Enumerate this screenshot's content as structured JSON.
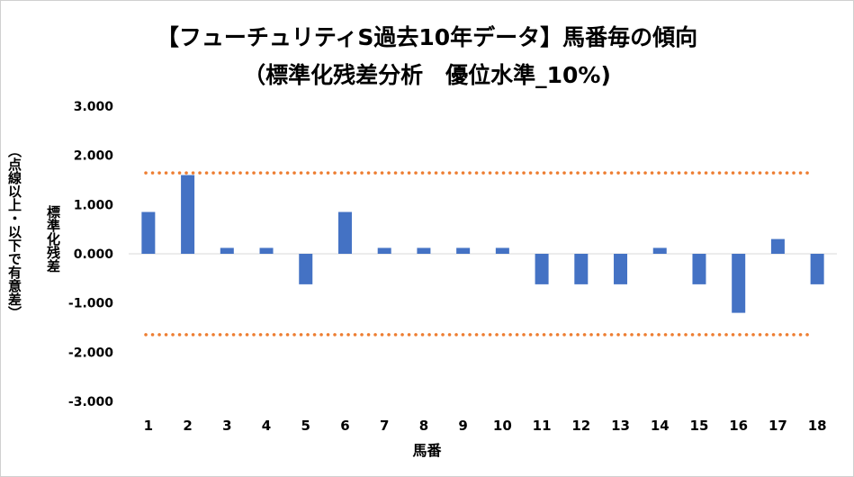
{
  "chart_data": {
    "type": "bar",
    "title": "【フューチュリティS過去10年データ】馬番毎の傾向",
    "subtitle": "（標準化残差分析　優位水準_10%)",
    "xlabel": "馬番",
    "ylabel": "標準化残差",
    "ylabel_note": "（点線以上・以下で有意差）",
    "categories": [
      "1",
      "2",
      "3",
      "4",
      "5",
      "6",
      "7",
      "8",
      "9",
      "10",
      "11",
      "12",
      "13",
      "14",
      "15",
      "16",
      "17",
      "18"
    ],
    "series": [
      {
        "values": [
          0.85,
          1.6,
          0.12,
          0.12,
          -0.62,
          0.85,
          0.12,
          0.12,
          0.12,
          0.12,
          -0.62,
          -0.62,
          -0.62,
          0.12,
          -0.62,
          -1.2,
          0.3,
          -0.62
        ]
      }
    ],
    "ylim": [
      -3,
      3
    ],
    "yticks": [
      "3.000",
      "2.000",
      "1.000",
      "0.000",
      "-1.000",
      "-2.000",
      "-3.000"
    ],
    "threshold_lines": [
      1.645,
      -1.645
    ],
    "grid": false,
    "colors": {
      "bar": "#4472C4",
      "threshold": "#ED7D31",
      "axis": "#d9d9d9"
    }
  }
}
